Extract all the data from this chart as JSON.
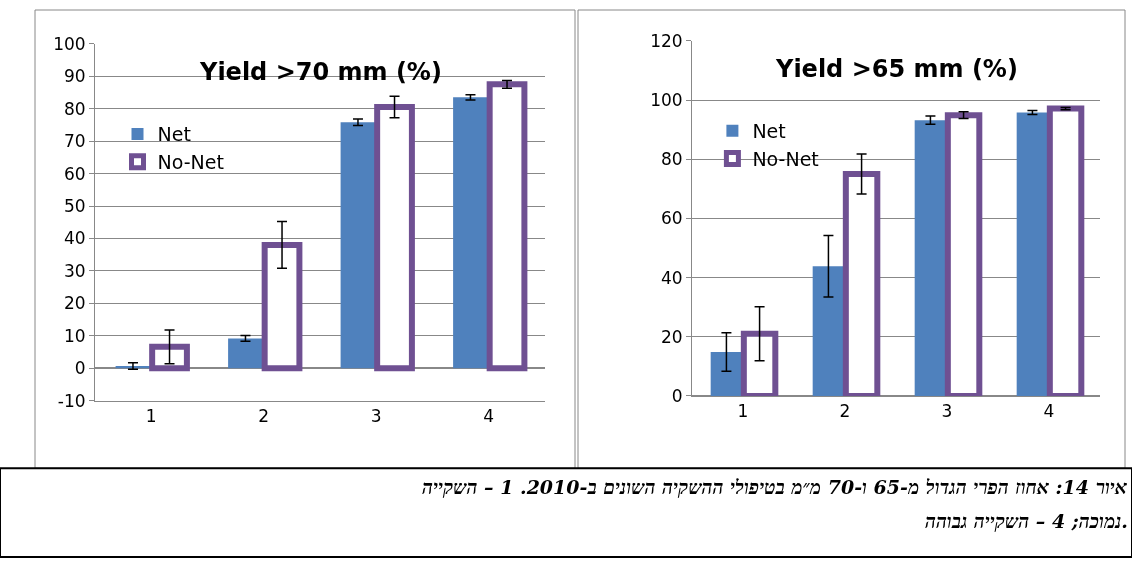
{
  "chart_data": [
    {
      "type": "bar",
      "title": "Yield >70 mm (%)",
      "categories": [
        "1",
        "2",
        "3",
        "4"
      ],
      "ylim": [
        -10,
        100
      ],
      "yticks": [
        -10,
        0,
        10,
        20,
        30,
        40,
        50,
        60,
        70,
        80,
        90,
        100
      ],
      "grid": "y",
      "legend": "top left",
      "series": [
        {
          "name": "Net",
          "color": "#4f81bd",
          "values": [
            0.7,
            9.2,
            75.8,
            83.5
          ],
          "errors": [
            1,
            0.9,
            1,
            0.8
          ]
        },
        {
          "name": "No-Net",
          "color": "#6f5092",
          "values": [
            6.6,
            38,
            80.5,
            87.5
          ],
          "errors": [
            5.2,
            7.2,
            3.3,
            1.2
          ]
        }
      ],
      "annotations": [
        "איור 14: אחוז הפרי הגדול מ-65 ו-70 מ״מ בטיפולי ההשקיה השונים ב-2010. 1 – השקייה",
        "נמוכה; 4 – השקייה גבוהה."
      ]
    },
    {
      "type": "bar",
      "title": "Yield >65 mm (%)",
      "categories": [
        "1",
        "2",
        "3",
        "4"
      ],
      "ylim": [
        0,
        120
      ],
      "yticks": [
        0,
        20,
        40,
        60,
        80,
        100,
        120
      ],
      "grid": "y",
      "legend": "top left",
      "series": [
        {
          "name": "Net",
          "color": "#4f81bd",
          "values": [
            14.8,
            43.8,
            93.2,
            95.8
          ],
          "errors": [
            6.5,
            10.4,
            1.4,
            0.7
          ]
        },
        {
          "name": "No-Net",
          "color": "#6f5092",
          "values": [
            21,
            75,
            94.9,
            97.1
          ],
          "errors": [
            9.1,
            6.8,
            1.1,
            0.4
          ]
        }
      ]
    }
  ]
}
